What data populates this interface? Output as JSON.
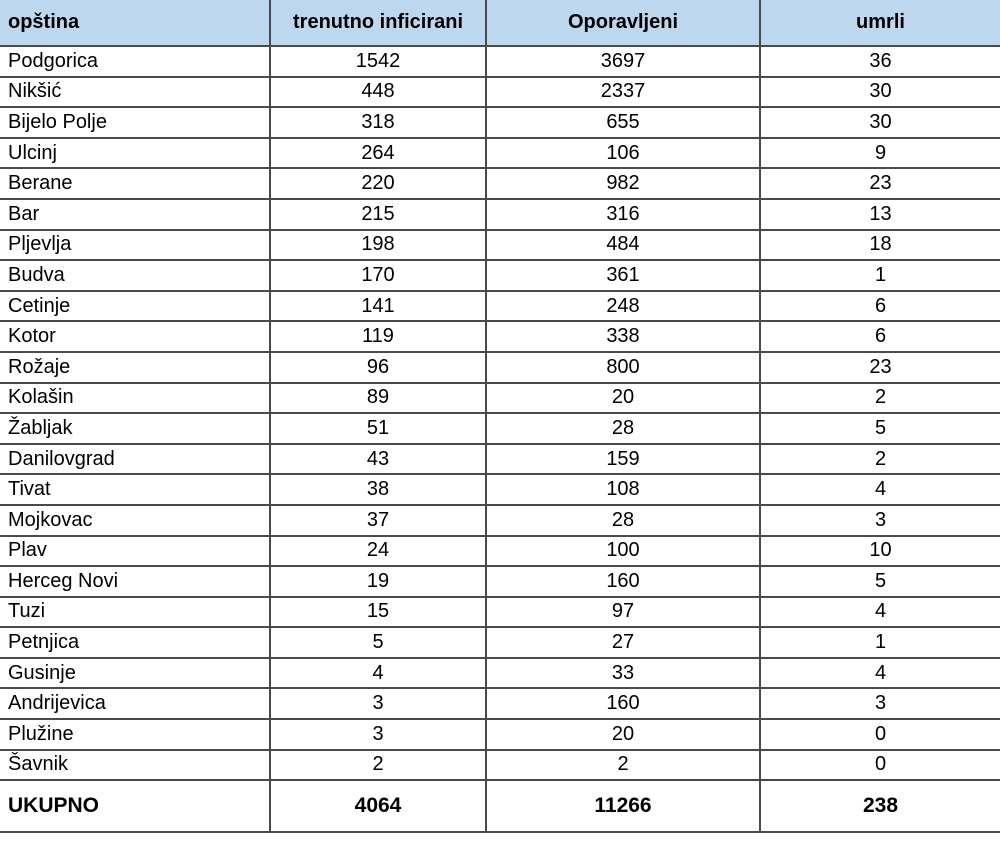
{
  "headers": [
    "opština",
    "trenutno inficirani",
    "Oporavljeni",
    "umrli"
  ],
  "rows": [
    [
      "Podgorica",
      "1542",
      "3697",
      "36"
    ],
    [
      "Nikšić",
      "448",
      "2337",
      "30"
    ],
    [
      "Bijelo Polje",
      "318",
      "655",
      "30"
    ],
    [
      "Ulcinj",
      "264",
      "106",
      "9"
    ],
    [
      "Berane",
      "220",
      "982",
      "23"
    ],
    [
      "Bar",
      "215",
      "316",
      "13"
    ],
    [
      "Pljevlja",
      "198",
      "484",
      "18"
    ],
    [
      "Budva",
      "170",
      "361",
      "1"
    ],
    [
      "Cetinje",
      "141",
      "248",
      "6"
    ],
    [
      "Kotor",
      "119",
      "338",
      "6"
    ],
    [
      "Rožaje",
      "96",
      "800",
      "23"
    ],
    [
      "Kolašin",
      "89",
      "20",
      "2"
    ],
    [
      "Žabljak",
      "51",
      "28",
      "5"
    ],
    [
      "Danilovgrad",
      "43",
      "159",
      "2"
    ],
    [
      "Tivat",
      "38",
      "108",
      "4"
    ],
    [
      "Mojkovac",
      "37",
      "28",
      "3"
    ],
    [
      "Plav",
      "24",
      "100",
      "10"
    ],
    [
      "Herceg Novi",
      "19",
      "160",
      "5"
    ],
    [
      "Tuzi",
      "15",
      "97",
      "4"
    ],
    [
      "Petnjica",
      "5",
      "27",
      "1"
    ],
    [
      "Gusinje",
      "4",
      "33",
      "4"
    ],
    [
      "Andrijevica",
      "3",
      "160",
      "3"
    ],
    [
      "Plužine",
      "3",
      "20",
      "0"
    ],
    [
      "Šavnik",
      "2",
      "2",
      "0"
    ]
  ],
  "total": [
    "UKUPNO",
    "4064",
    "11266",
    "238"
  ]
}
